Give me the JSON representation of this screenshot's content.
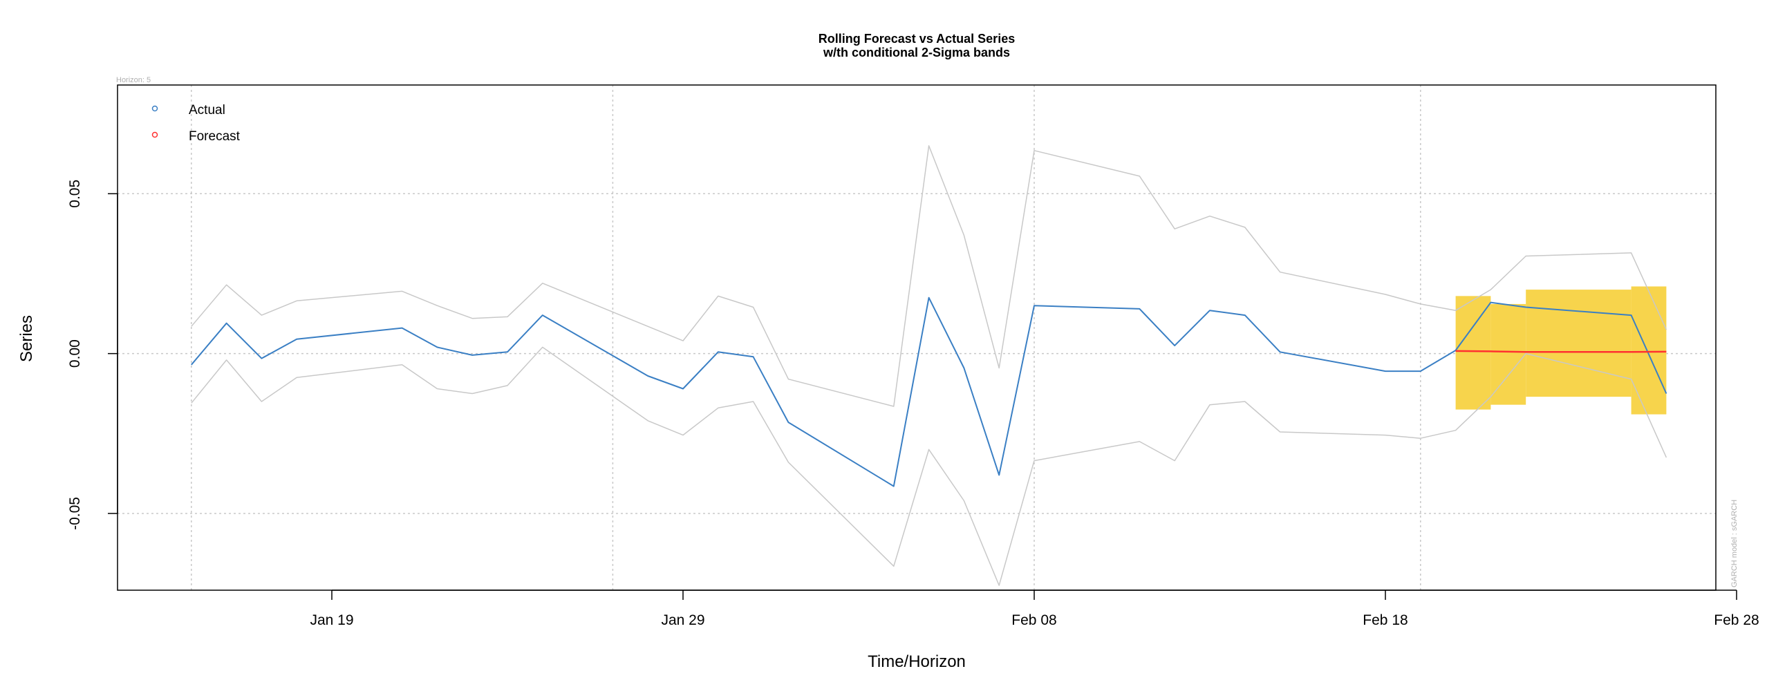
{
  "chart_data": {
    "type": "line",
    "title": "Rolling Forecast vs Actual Series",
    "subtitle": "w/th conditional 2-Sigma bands",
    "xlabel": "Time/Horizon",
    "ylabel": "Series",
    "corner_note": "Horizon: 5",
    "side_note": "GARCH model : sGARCH",
    "x_range": [
      "2024-01-14",
      "2024-02-28"
    ],
    "ylim": [
      -0.074,
      0.084
    ],
    "grid": true,
    "legend_position": "top-left",
    "x_ticks": [
      {
        "date": "2024-01-19",
        "label": "Jan 19"
      },
      {
        "date": "2024-01-29",
        "label": "Jan 29"
      },
      {
        "date": "2024-02-08",
        "label": "Feb 08"
      },
      {
        "date": "2024-02-18",
        "label": "Feb 18"
      },
      {
        "date": "2024-02-28",
        "label": "Feb 28"
      }
    ],
    "y_ticks": [
      {
        "value": -0.05,
        "label": "-0.05"
      },
      {
        "value": 0.0,
        "label": "0.00"
      },
      {
        "value": 0.05,
        "label": "0.05"
      }
    ],
    "x_gridlines": [
      "2024-01-15",
      "2024-01-27",
      "2024-02-08",
      "2024-02-19"
    ],
    "colors": {
      "actual": "#3a7fc4",
      "forecast": "#ff3030",
      "bands": "#c8c8c8",
      "interval_fill": "#f7d44c",
      "grid": "#c8c8c8",
      "frame": "#000000"
    },
    "series": [
      {
        "name": "Actual",
        "x": [
          "2024-01-15",
          "2024-01-16",
          "2024-01-17",
          "2024-01-18",
          "2024-01-21",
          "2024-01-22",
          "2024-01-23",
          "2024-01-24",
          "2024-01-25",
          "2024-01-28",
          "2024-01-29",
          "2024-01-30",
          "2024-01-31",
          "2024-02-01",
          "2024-02-04",
          "2024-02-05",
          "2024-02-06",
          "2024-02-07",
          "2024-02-08",
          "2024-02-11",
          "2024-02-12",
          "2024-02-13",
          "2024-02-14",
          "2024-02-15",
          "2024-02-18",
          "2024-02-19",
          "2024-02-20",
          "2024-02-21",
          "2024-02-22",
          "2024-02-25",
          "2024-02-26"
        ],
        "values": [
          -0.0035,
          0.0095,
          -0.0015,
          0.0045,
          0.008,
          0.002,
          -0.0005,
          0.0005,
          0.012,
          -0.007,
          -0.011,
          0.0005,
          -0.001,
          -0.0215,
          -0.0415,
          0.0175,
          -0.0045,
          -0.038,
          0.015,
          0.014,
          0.0025,
          0.0135,
          0.012,
          0.0005,
          -0.0055,
          -0.0055,
          0.001,
          0.016,
          0.0145,
          0.012,
          -0.0125
        ]
      },
      {
        "name": "Forecast",
        "x": [
          "2024-02-20",
          "2024-02-21",
          "2024-02-22",
          "2024-02-25",
          "2024-02-26"
        ],
        "values": [
          0.0008,
          0.0007,
          0.0005,
          0.0005,
          0.0006
        ]
      },
      {
        "name": "Upper 2-Sigma",
        "x": [
          "2024-01-15",
          "2024-01-16",
          "2024-01-17",
          "2024-01-18",
          "2024-01-21",
          "2024-01-22",
          "2024-01-23",
          "2024-01-24",
          "2024-01-25",
          "2024-01-28",
          "2024-01-29",
          "2024-01-30",
          "2024-01-31",
          "2024-02-01",
          "2024-02-04",
          "2024-02-05",
          "2024-02-06",
          "2024-02-07",
          "2024-02-08",
          "2024-02-11",
          "2024-02-12",
          "2024-02-13",
          "2024-02-14",
          "2024-02-15",
          "2024-02-18",
          "2024-02-19",
          "2024-02-20",
          "2024-02-21",
          "2024-02-22",
          "2024-02-25",
          "2024-02-26"
        ],
        "values": [
          0.0085,
          0.0215,
          0.012,
          0.0165,
          0.0195,
          0.015,
          0.011,
          0.0115,
          0.022,
          0.0085,
          0.004,
          0.018,
          0.0145,
          -0.008,
          -0.0165,
          0.065,
          0.037,
          -0.0045,
          0.0635,
          0.0555,
          0.039,
          0.043,
          0.0395,
          0.0255,
          0.0185,
          0.0155,
          0.0135,
          0.02,
          0.0305,
          0.0315,
          0.0075
        ]
      },
      {
        "name": "Lower 2-Sigma",
        "x": [
          "2024-01-15",
          "2024-01-16",
          "2024-01-17",
          "2024-01-18",
          "2024-01-21",
          "2024-01-22",
          "2024-01-23",
          "2024-01-24",
          "2024-01-25",
          "2024-01-28",
          "2024-01-29",
          "2024-01-30",
          "2024-01-31",
          "2024-02-01",
          "2024-02-04",
          "2024-02-05",
          "2024-02-06",
          "2024-02-07",
          "2024-02-08",
          "2024-02-11",
          "2024-02-12",
          "2024-02-13",
          "2024-02-14",
          "2024-02-15",
          "2024-02-18",
          "2024-02-19",
          "2024-02-20",
          "2024-02-21",
          "2024-02-22",
          "2024-02-25",
          "2024-02-26"
        ],
        "values": [
          -0.0155,
          -0.002,
          -0.015,
          -0.0075,
          -0.0035,
          -0.011,
          -0.0125,
          -0.01,
          0.002,
          -0.021,
          -0.0255,
          -0.017,
          -0.015,
          -0.034,
          -0.0665,
          -0.03,
          -0.046,
          -0.0725,
          -0.0335,
          -0.0275,
          -0.0335,
          -0.016,
          -0.015,
          -0.0245,
          -0.0255,
          -0.0265,
          -0.024,
          -0.0135,
          0.0,
          -0.008,
          -0.0325
        ]
      }
    ],
    "forecast_intervals": [
      {
        "from": "2024-02-20",
        "to": "2024-02-21",
        "low": -0.0175,
        "high": 0.018
      },
      {
        "from": "2024-02-21",
        "to": "2024-02-22",
        "low": -0.016,
        "high": 0.0155
      },
      {
        "from": "2024-02-22",
        "to": "2024-02-25",
        "low": -0.0135,
        "high": 0.02
      },
      {
        "from": "2024-02-25",
        "to": "2024-02-26",
        "low": -0.019,
        "high": 0.021
      }
    ],
    "legend": [
      {
        "label": "Actual",
        "series": "actual"
      },
      {
        "label": "Forecast",
        "series": "forecast"
      }
    ]
  }
}
